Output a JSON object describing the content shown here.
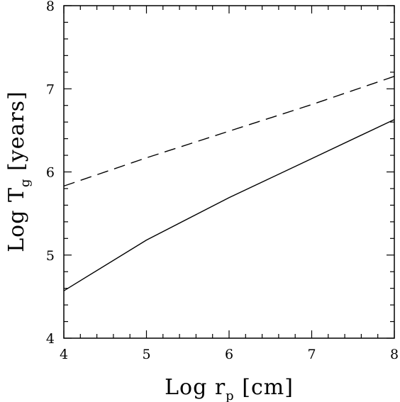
{
  "chart_data": {
    "type": "line",
    "x_label": {
      "prefix": "Log r",
      "subscript": "p",
      "suffix": " [cm]"
    },
    "y_label": {
      "prefix": "Log T",
      "subscript": "g",
      "suffix": " [years]"
    },
    "xlim": [
      4,
      8
    ],
    "ylim": [
      4,
      8
    ],
    "x_ticks": [
      "4",
      "5",
      "6",
      "7",
      "8"
    ],
    "y_ticks": [
      "4",
      "5",
      "6",
      "7",
      "8"
    ],
    "grid": false,
    "series": [
      {
        "style": "solid",
        "color": "#000000",
        "points": [
          [
            4,
            4.57
          ],
          [
            5,
            5.18
          ],
          [
            6,
            5.69
          ],
          [
            7,
            6.16
          ],
          [
            8,
            6.63
          ]
        ]
      },
      {
        "style": "dashed",
        "color": "#000000",
        "points": [
          [
            4,
            5.83
          ],
          [
            5,
            6.17
          ],
          [
            6,
            6.49
          ],
          [
            7,
            6.81
          ],
          [
            8,
            7.15
          ]
        ]
      }
    ]
  }
}
